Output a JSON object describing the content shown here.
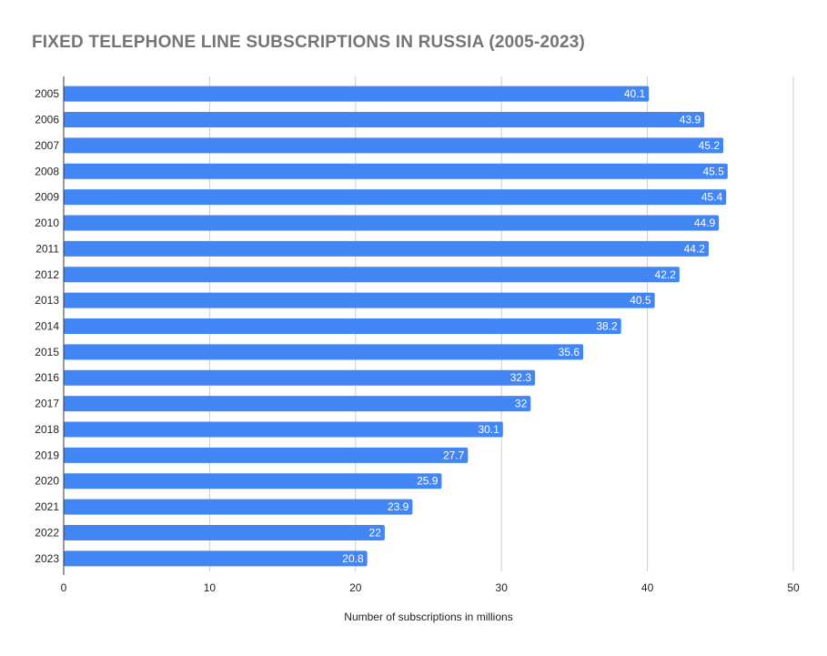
{
  "chart_data": {
    "type": "bar",
    "orientation": "horizontal",
    "title": "FIXED TELEPHONE LINE SUBSCRIPTIONS IN RUSSIA (2005-2023)",
    "xlabel": "Number of subscriptions in millions",
    "ylabel": "",
    "xlim": [
      0,
      50
    ],
    "xticks": [
      0,
      10,
      20,
      30,
      40,
      50
    ],
    "categories": [
      "2005",
      "2006",
      "2007",
      "2008",
      "2009",
      "2010",
      "2011",
      "2012",
      "2013",
      "2014",
      "2015",
      "2016",
      "2017",
      "2018",
      "2019",
      "2020",
      "2021",
      "2022",
      "2023"
    ],
    "values": [
      40.1,
      43.9,
      45.2,
      45.5,
      45.4,
      44.9,
      44.2,
      42.2,
      40.5,
      38.2,
      35.6,
      32.3,
      32,
      30.1,
      27.7,
      25.9,
      23.9,
      22,
      20.8
    ],
    "data_labels": [
      "40.1",
      "43.9",
      "45.2",
      "45.5",
      "45.4",
      "44.9",
      "44.2",
      "42.2",
      "40.5",
      "38.2",
      "35.6",
      "32.3",
      "32",
      "30.1",
      "27.7",
      "25.9",
      "23.9",
      "22",
      "20.8"
    ],
    "grid": "vertical",
    "legend": "none",
    "colors": {
      "bar": "#4285f4",
      "gridline": "#cccccc",
      "axis": "#333333",
      "title": "#757575"
    }
  }
}
